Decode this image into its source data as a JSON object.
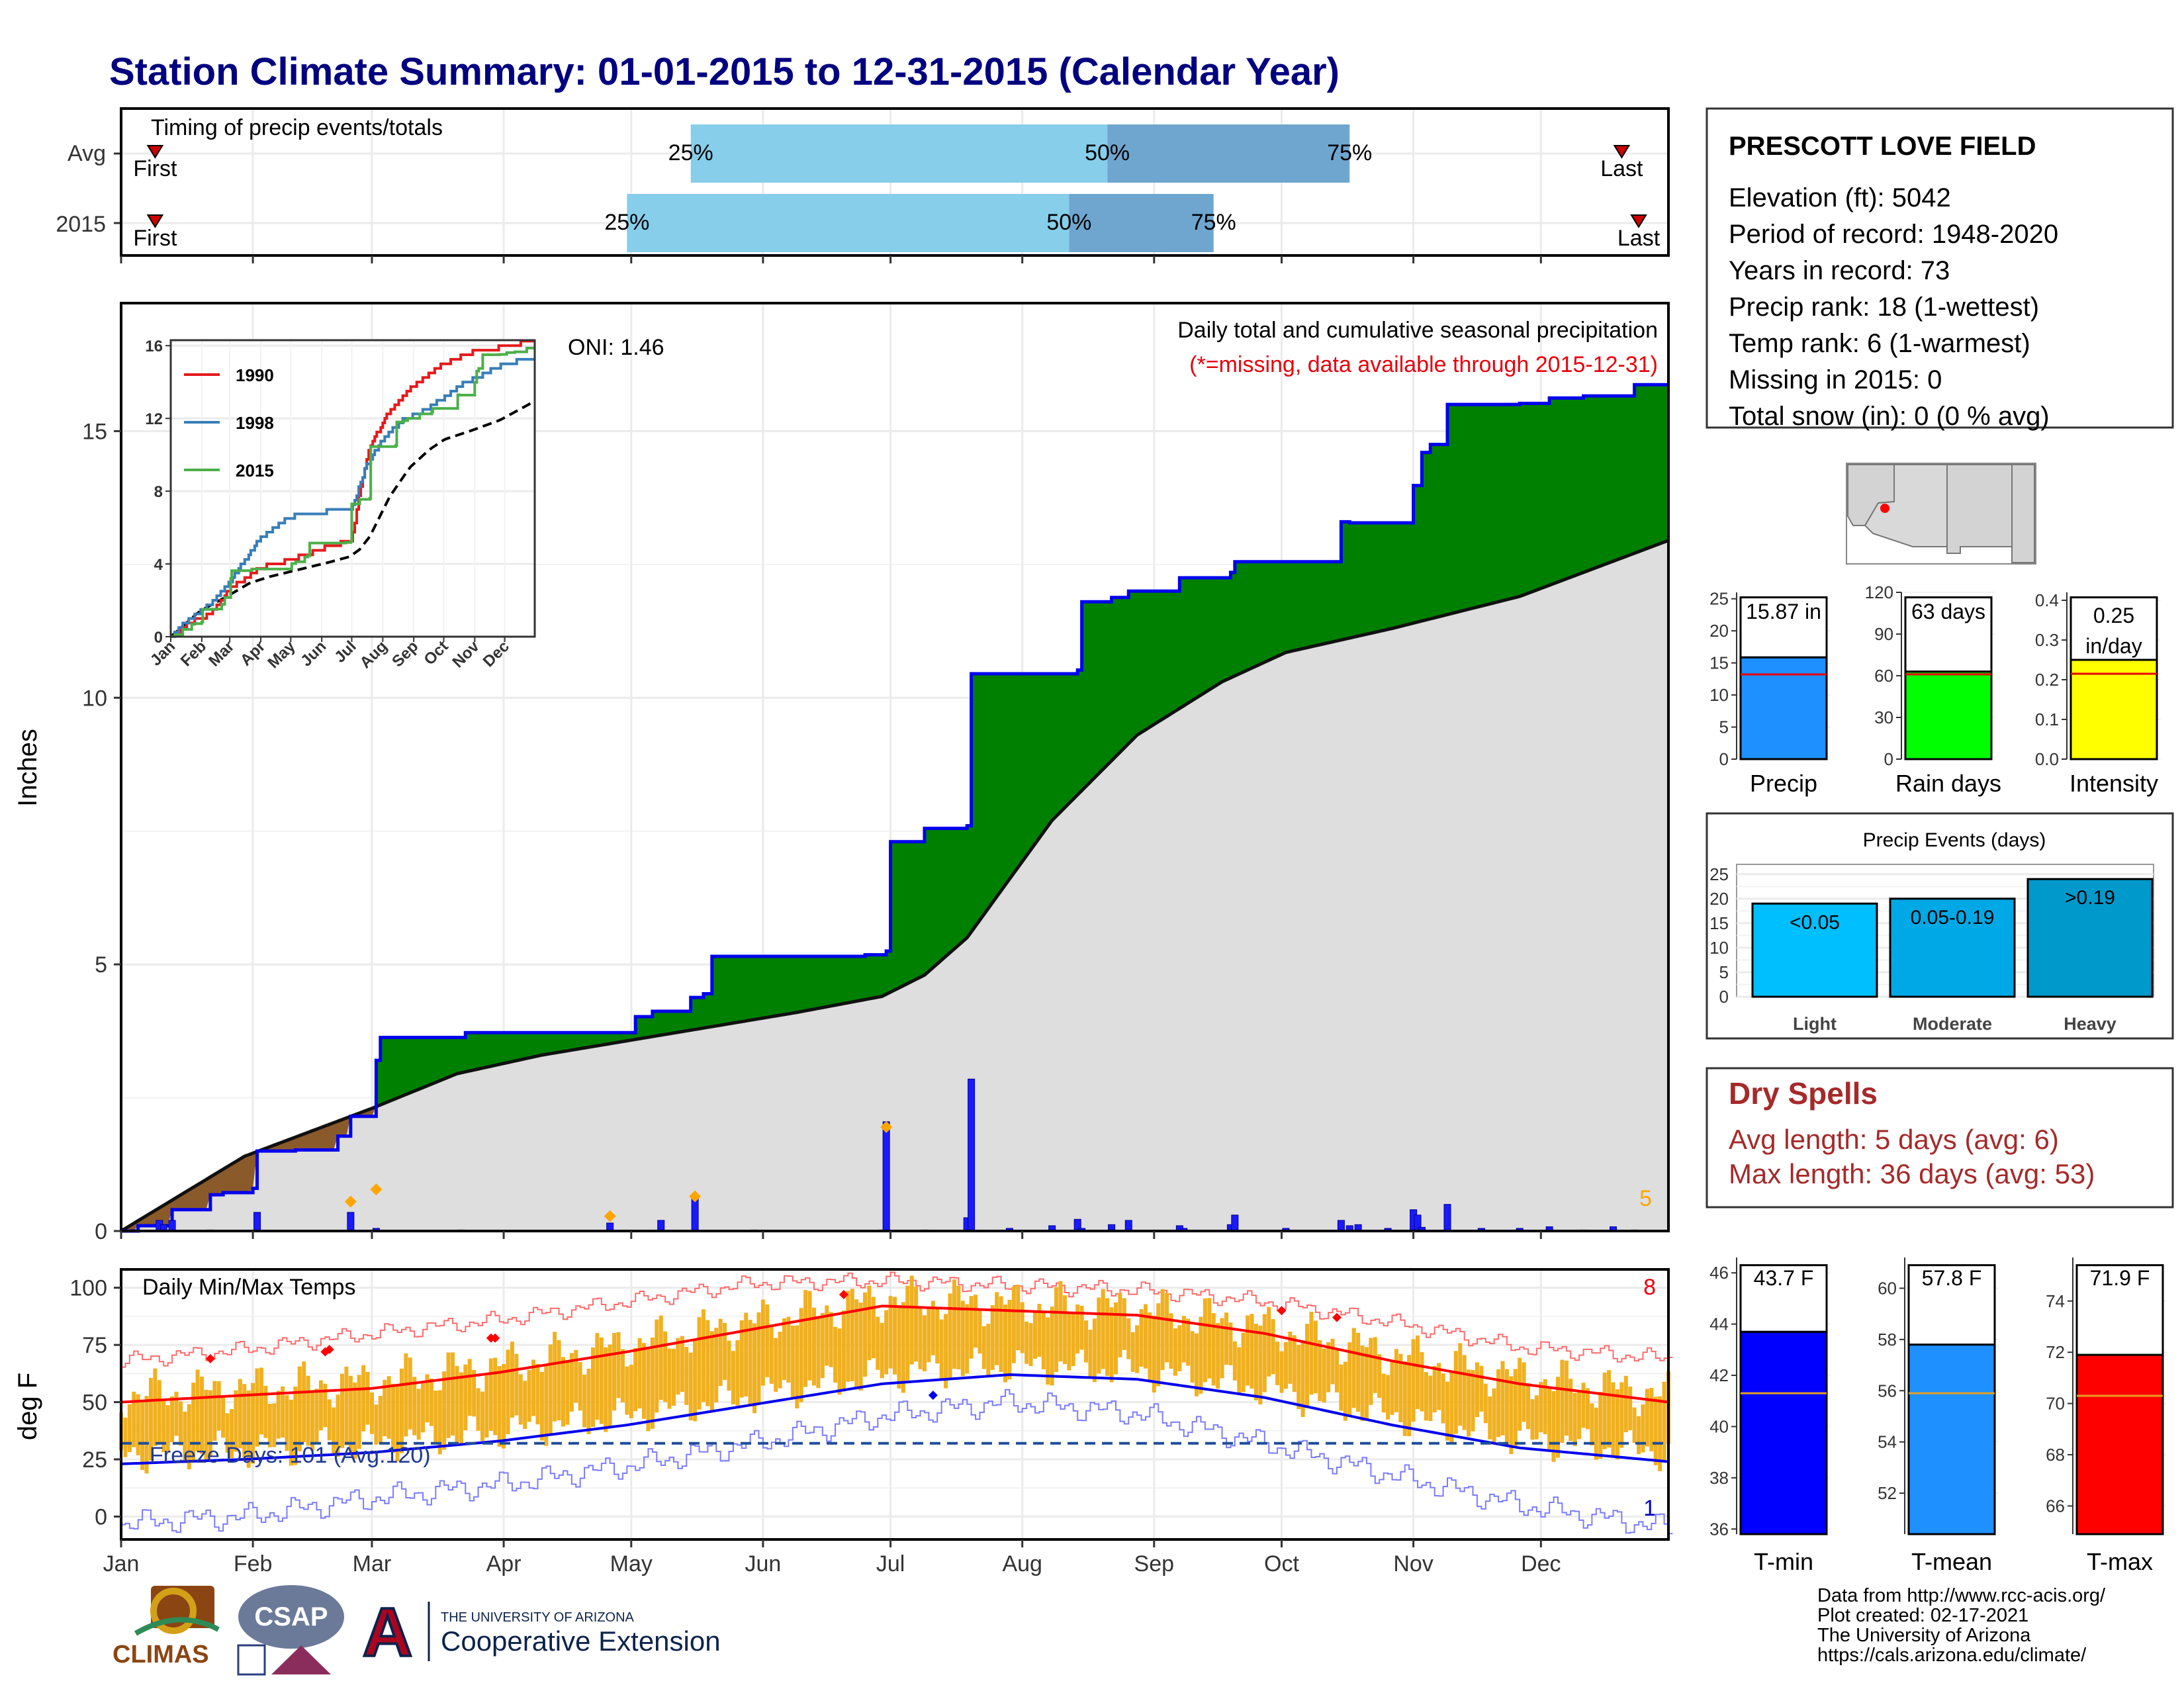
{
  "title": "Station Climate Summary: 01-01-2015 to 12-31-2015 (Calendar Year)",
  "timing_panel": {
    "caption": "Timing of precip events/totals",
    "rows": [
      {
        "label": "Avg",
        "first_label": "First",
        "last_label": "Last",
        "first_day": 9,
        "last_day": 354,
        "p25": 135,
        "p50": 233,
        "p75": 290,
        "p25_label": "25%",
        "p50_label": "50%",
        "p75_label": "75%"
      },
      {
        "label": "2015",
        "first_label": "First",
        "last_label": "Last",
        "first_day": 9,
        "last_day": 358,
        "p25": 120,
        "p50": 224,
        "p75": 258,
        "p25_label": "25%",
        "p50_label": "50%",
        "p75_label": "75%"
      }
    ],
    "colors": {
      "early": "#87ceeb",
      "late": "#6fa6cf",
      "marker": "#cc0000"
    }
  },
  "months": [
    "Jan",
    "Feb",
    "Mar",
    "Apr",
    "May",
    "Jun",
    "Jul",
    "Aug",
    "Sep",
    "Oct",
    "Nov",
    "Dec"
  ],
  "precip_panel": {
    "ylabel": "Inches",
    "caption": "Daily total and cumulative seasonal precipitation",
    "missing_note": "(*=missing, data available through 2015-12-31)",
    "oni_label": "ONI: 1.46",
    "corner_count": "5",
    "yticks": [
      "0",
      "5",
      "10",
      "15"
    ]
  },
  "inset": {
    "legend": [
      "1990",
      "1998",
      "2015"
    ],
    "yticks": [
      "0",
      "4",
      "8",
      "12",
      "16"
    ],
    "months": [
      "Jan",
      "Feb",
      "Mar",
      "Apr",
      "May",
      "Jun",
      "Jul",
      "Aug",
      "Sep",
      "Oct",
      "Nov",
      "Dec"
    ],
    "colors": {
      "1990": "#e41a1c",
      "1998": "#377eb8",
      "2015": "#4daf4a"
    }
  },
  "temp_panel": {
    "ylabel": "deg F",
    "caption": "Daily Min/Max Temps",
    "freeze_label": "Freeze Days: 101 (Avg:120)",
    "corner_max": "8",
    "corner_min": "1",
    "yticks": [
      "0",
      "25",
      "50",
      "75",
      "100"
    ]
  },
  "station": {
    "name": "PRESCOTT LOVE FIELD",
    "lines": [
      "Elevation (ft): 5042",
      "Period of record: 1948-2020",
      "Years in record: 73",
      "Precip rank: 18 (1-wettest)",
      "Temp rank: 6 (1-warmest)",
      "Missing in 2015: 0",
      "Total snow (in): 0 (0 % avg)"
    ]
  },
  "mini_bars": [
    {
      "name": "Precip",
      "value_label": "15.87 in",
      "value": 15.87,
      "avg": 13.2,
      "ymax": 26,
      "ticks": [
        "0",
        "5",
        "10",
        "15",
        "20",
        "25"
      ],
      "tickvals": [
        0,
        5,
        10,
        15,
        20,
        25
      ],
      "color": "#1e90ff"
    },
    {
      "name": "Rain days",
      "value_label": "63 days",
      "value": 63,
      "avg": 61,
      "ymax": 120,
      "ticks": [
        "0",
        "30",
        "60",
        "90",
        "120"
      ],
      "tickvals": [
        0,
        30,
        60,
        90,
        120
      ],
      "color": "#00ff00"
    },
    {
      "name": "Intensity",
      "value_label": "0.25 in/day",
      "value_label_a": "0.25",
      "value_label_b": "in/day",
      "value": 0.25,
      "avg": 0.215,
      "ymax": 0.42,
      "ticks": [
        "0.0",
        "0.1",
        "0.2",
        "0.3",
        "0.4"
      ],
      "tickvals": [
        0,
        0.1,
        0.2,
        0.3,
        0.4
      ],
      "color": "#ffff00"
    }
  ],
  "events": {
    "title": "Precip Events (days)",
    "yticks": [
      "0",
      "5",
      "10",
      "15",
      "20",
      "25"
    ],
    "bars": [
      {
        "category": "Light",
        "label": "<0.05",
        "value": 19,
        "color": "#00bfff"
      },
      {
        "category": "Moderate",
        "label": "0.05-0.19",
        "value": 20,
        "color": "#00a9e6"
      },
      {
        "category": "Heavy",
        "label": ">0.19",
        "value": 24,
        "color": "#0099cc"
      }
    ]
  },
  "dry_spells": {
    "title": "Dry Spells",
    "avg_line": "Avg length: 5 days (avg: 6)",
    "max_line": "Max length: 36 days (avg: 53)"
  },
  "temp_bars": [
    {
      "name": "T-min",
      "value_label": "43.7 F",
      "value": 43.7,
      "avg": 41.3,
      "ymin": 35.8,
      "ymax": 46.6,
      "ticks": [
        "36",
        "38",
        "40",
        "42",
        "44",
        "46"
      ],
      "tickvals": [
        36,
        38,
        40,
        42,
        44,
        46
      ],
      "color": "#0000ff"
    },
    {
      "name": "T-mean",
      "value_label": "57.8 F",
      "value": 57.8,
      "avg": 55.9,
      "ymin": 50.4,
      "ymax": 61.2,
      "ticks": [
        "52",
        "54",
        "56",
        "58",
        "60"
      ],
      "tickvals": [
        52,
        54,
        56,
        58,
        60
      ],
      "color": "#1e90ff"
    },
    {
      "name": "T-max",
      "value_label": "71.9 F",
      "value": 71.9,
      "avg": 70.3,
      "ymin": 64.9,
      "ymax": 75.7,
      "ticks": [
        "66",
        "68",
        "70",
        "72",
        "74"
      ],
      "tickvals": [
        66,
        68,
        70,
        72,
        74
      ],
      "color": "#ff0000"
    }
  ],
  "footer": {
    "lines": [
      "Data from http://www.rcc-acis.org/",
      "Plot created: 02-17-2021",
      "The University of Arizona",
      "https://cals.arizona.edu/climate/"
    ],
    "logo_climas": "CLIMAS",
    "logo_csap": "CSAP",
    "ua_small": "THE UNIVERSITY OF ARIZONA",
    "ua_big": "Cooperative Extension"
  },
  "chart_data": [
    {
      "type": "area",
      "title": "Daily total and cumulative seasonal precipitation",
      "ylabel": "Inches",
      "ylim": [
        0,
        17.4
      ],
      "x_unit": "day of year",
      "series": [
        {
          "name": "2015",
          "x": [
            1,
            5,
            13,
            22,
            25,
            32,
            33,
            42,
            52,
            55,
            61,
            61,
            62,
            82,
            122,
            126,
            135,
            138,
            140,
            176,
            181,
            182,
            190,
            200,
            201,
            226,
            227,
            234,
            238,
            250,
            262,
            263,
            285,
            288,
            290,
            305,
            307,
            309,
            313,
            330,
            337,
            345,
            357,
            365
          ],
          "values": [
            0,
            0.1,
            0.4,
            0.68,
            0.72,
            0.8,
            1.5,
            1.52,
            1.78,
            2.15,
            2.35,
            3.2,
            3.63,
            3.72,
            4.02,
            4.12,
            4.38,
            4.45,
            5.15,
            5.18,
            5.25,
            7.3,
            7.55,
            7.6,
            10.45,
            10.52,
            11.8,
            11.88,
            12.0,
            12.25,
            12.35,
            12.55,
            12.55,
            13.3,
            13.28,
            13.98,
            14.6,
            14.75,
            15.5,
            15.52,
            15.62,
            15.66,
            15.87,
            15.87
          ]
        },
        {
          "name": "Average",
          "x": [
            1,
            30,
            60,
            80,
            100,
            130,
            160,
            180,
            190,
            200,
            210,
            220,
            240,
            260,
            275,
            300,
            330,
            365
          ],
          "values": [
            0,
            1.4,
            2.3,
            2.95,
            3.3,
            3.7,
            4.1,
            4.4,
            4.8,
            5.5,
            6.6,
            7.7,
            9.3,
            10.3,
            10.85,
            11.3,
            11.9,
            12.95
          ]
        }
      ],
      "daily_bars": {
        "x": [
          10,
          11,
          13,
          22,
          33,
          55,
          61,
          81,
          116,
          128,
          136,
          150,
          180,
          181,
          190,
          200,
          201,
          210,
          220,
          226,
          227,
          234,
          238,
          250,
          251,
          262,
          263,
          275,
          288,
          290,
          292,
          299,
          305,
          306,
          307,
          313,
          321,
          330,
          337,
          345,
          352,
          357
        ],
        "values": [
          0.2,
          0.12,
          0.2,
          0.02,
          0.35,
          0.35,
          0.05,
          0.02,
          0.15,
          0.2,
          0.6,
          0.02,
          0.02,
          2.05,
          0.02,
          0.25,
          2.85,
          0.05,
          0.1,
          0.22,
          0.05,
          0.12,
          0.2,
          0.1,
          0.05,
          0.12,
          0.3,
          0.05,
          0.2,
          0.1,
          0.12,
          0.05,
          0.4,
          0.3,
          0.07,
          0.5,
          0.05,
          0.05,
          0.08,
          0.02,
          0.08,
          0.02
        ]
      },
      "missing_markers": {
        "x": [
          55,
          61,
          116,
          136,
          181
        ],
        "values": [
          0.55,
          0.78,
          0.28,
          0.65,
          1.95
        ]
      }
    },
    {
      "type": "line",
      "title": "Daily Min/Max Temps",
      "ylabel": "deg F",
      "ylim": [
        -10,
        108
      ],
      "x_unit": "day of year",
      "series": [
        {
          "name": "Avg max",
          "x": [
            1,
            30,
            60,
            90,
            120,
            150,
            180,
            210,
            240,
            270,
            300,
            330,
            365
          ],
          "values": [
            50,
            53,
            56,
            63,
            72,
            82,
            92,
            90,
            88,
            80,
            68,
            58,
            50
          ]
        },
        {
          "name": "Avg min",
          "x": [
            1,
            30,
            60,
            90,
            120,
            150,
            180,
            210,
            240,
            270,
            300,
            330,
            365
          ],
          "values": [
            23,
            25,
            28,
            33,
            40,
            49,
            58,
            62,
            60,
            52,
            40,
            30,
            24
          ]
        },
        {
          "name": "Record max",
          "x": [
            1,
            30,
            60,
            90,
            120,
            150,
            180,
            210,
            240,
            270,
            300,
            330,
            365
          ],
          "values": [
            68,
            73,
            80,
            86,
            94,
            102,
            103,
            101,
            99,
            94,
            85,
            74,
            69
          ]
        },
        {
          "name": "Record min",
          "x": [
            1,
            30,
            60,
            90,
            120,
            150,
            180,
            210,
            240,
            270,
            300,
            330,
            365
          ],
          "values": [
            -3,
            0,
            8,
            14,
            22,
            32,
            44,
            50,
            45,
            32,
            18,
            5,
            -5
          ]
        }
      ],
      "freeze_line": 32,
      "daily_range_note": "orange bars span daily Tmin to Tmax"
    },
    {
      "type": "bar",
      "title": "Precip Events (days)",
      "categories": [
        "Light",
        "Moderate",
        "Heavy"
      ],
      "values": [
        19,
        20,
        24
      ],
      "ylim": [
        0,
        27
      ]
    }
  ]
}
